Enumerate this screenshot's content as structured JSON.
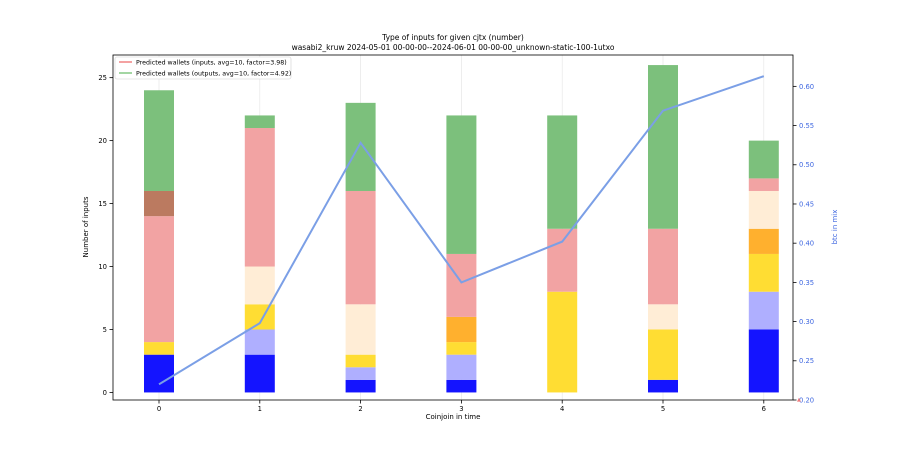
{
  "chart_data": {
    "type": "bar",
    "title": "Type of inputs for given cjtx (number)",
    "subtitle": "wasabi2_kruw 2024-05-01 00-00-00--2024-06-01 00-00-00_unknown-static-100-1utxo",
    "xlabel": "Coinjoin in time",
    "ylabel": "Number of inputs",
    "y2label": "btc in mix",
    "categories": [
      "0",
      "1",
      "2",
      "3",
      "4",
      "5",
      "6"
    ],
    "ylim": [
      -0.6,
      26.8
    ],
    "y_ticks": [
      0,
      5,
      10,
      15,
      20,
      25
    ],
    "y2lim": [
      0.2,
      0.64
    ],
    "y2_ticks": [
      "0.20",
      "0.25",
      "0.30",
      "0.35",
      "0.40",
      "0.45",
      "0.50",
      "0.55",
      "0.60"
    ],
    "legend": {
      "placement": "top-left",
      "entries": [
        {
          "label": "Predicted wallets (inputs, avg=10, factor=3.98)",
          "color": "#ef7b7b"
        },
        {
          "label": "Predicted wallets (outputs, avg=10, factor=4.92)",
          "color": "#7bc47b"
        }
      ]
    },
    "stack_colors": [
      "#1414ff",
      "#afafff",
      "#ffdd33",
      "#ffb02e",
      "#ffedd6",
      "#f2a3a3",
      "#bb7a60",
      "#7cc07c"
    ],
    "series": [
      {
        "color": "#1414ff",
        "values": [
          3,
          3,
          1,
          1,
          0,
          1,
          5
        ]
      },
      {
        "color": "#afafff",
        "values": [
          0,
          2,
          1,
          2,
          0,
          0,
          3
        ]
      },
      {
        "color": "#ffdd33",
        "values": [
          1,
          2,
          1,
          1,
          8,
          4,
          3
        ]
      },
      {
        "color": "#ffb02e",
        "values": [
          0,
          0,
          0,
          2,
          0,
          0,
          2
        ]
      },
      {
        "color": "#ffedd6",
        "values": [
          0,
          3,
          4,
          0,
          0,
          2,
          3
        ]
      },
      {
        "color": "#f2a3a3",
        "values": [
          10,
          11,
          9,
          5,
          5,
          6,
          1
        ]
      },
      {
        "color": "#bb7a60",
        "values": [
          2,
          0,
          0,
          0,
          0,
          0,
          0
        ]
      },
      {
        "color": "#7cc07c",
        "values": [
          8,
          1,
          7,
          11,
          9,
          13,
          3
        ]
      }
    ],
    "line": {
      "axis": "right",
      "color": "#7b9fe6",
      "values": [
        0.22,
        0.298,
        0.528,
        0.35,
        0.402,
        0.569,
        0.613
      ]
    },
    "grid": "vertical"
  }
}
